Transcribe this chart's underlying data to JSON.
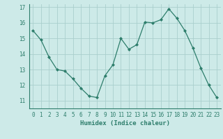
{
  "xlabel": "Humidex (Indice chaleur)",
  "x_values": [
    0,
    1,
    2,
    3,
    4,
    5,
    6,
    7,
    8,
    9,
    10,
    11,
    12,
    13,
    14,
    15,
    16,
    17,
    18,
    19,
    20,
    21,
    22,
    23
  ],
  "y_values": [
    15.5,
    14.9,
    13.8,
    13.0,
    12.9,
    12.4,
    11.8,
    11.3,
    11.2,
    12.6,
    13.3,
    15.0,
    14.3,
    14.6,
    16.05,
    16.0,
    16.2,
    16.9,
    16.3,
    15.5,
    14.4,
    13.1,
    12.0,
    11.2
  ],
  "line_color": "#2d7d6b",
  "marker": "D",
  "marker_size": 2.0,
  "bg_color": "#cdeae8",
  "grid_color": "#aacfcd",
  "axis_color": "#2d7d6b",
  "tick_label_color": "#2d7d6b",
  "xlabel_color": "#2d7d6b",
  "ylim": [
    10.5,
    17.2
  ],
  "yticks": [
    11,
    12,
    13,
    14,
    15,
    16,
    17
  ],
  "xlim": [
    -0.5,
    23.5
  ],
  "xticks": [
    0,
    1,
    2,
    3,
    4,
    5,
    6,
    7,
    8,
    9,
    10,
    11,
    12,
    13,
    14,
    15,
    16,
    17,
    18,
    19,
    20,
    21,
    22,
    23
  ]
}
